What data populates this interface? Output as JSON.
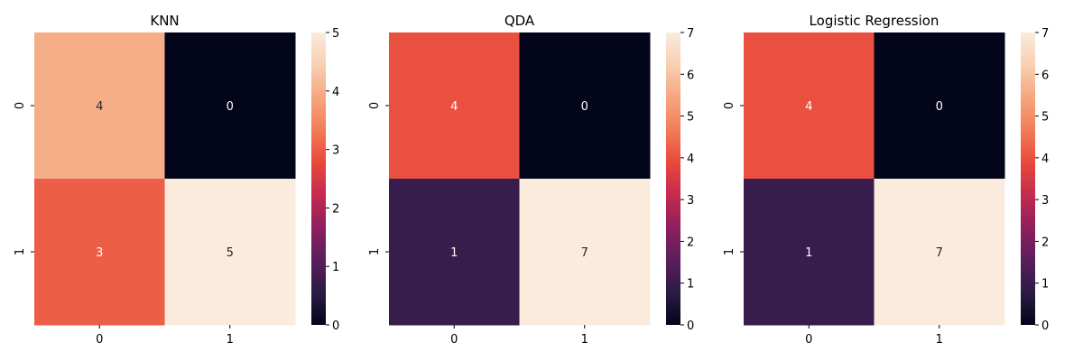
{
  "chart_data": [
    {
      "type": "heatmap",
      "title": "KNN",
      "x_categories": [
        "0",
        "1"
      ],
      "y_categories": [
        "0",
        "1"
      ],
      "values": [
        [
          4,
          0
        ],
        [
          3,
          5
        ]
      ],
      "colorbar": {
        "min": 0,
        "max": 5,
        "ticks": [
          0,
          1,
          2,
          3,
          4,
          5
        ]
      }
    },
    {
      "type": "heatmap",
      "title": "QDA",
      "x_categories": [
        "0",
        "1"
      ],
      "y_categories": [
        "0",
        "1"
      ],
      "values": [
        [
          4,
          0
        ],
        [
          1,
          7
        ]
      ],
      "colorbar": {
        "min": 0,
        "max": 7,
        "ticks": [
          0,
          1,
          2,
          3,
          4,
          5,
          6,
          7
        ]
      }
    },
    {
      "type": "heatmap",
      "title": "Logistic Regression",
      "x_categories": [
        "0",
        "1"
      ],
      "y_categories": [
        "0",
        "1"
      ],
      "values": [
        [
          4,
          0
        ],
        [
          1,
          7
        ]
      ],
      "colorbar": {
        "min": 0,
        "max": 7,
        "ticks": [
          0,
          1,
          2,
          3,
          4,
          5,
          6,
          7
        ]
      }
    }
  ],
  "colormap": {
    "name": "rocket",
    "stops": [
      "#03051a",
      "#2b1b44",
      "#5a1e5d",
      "#8f1f5d",
      "#c42b4f",
      "#e8493c",
      "#f27d57",
      "#f5a67f",
      "#f8cfb1",
      "#faebdd"
    ]
  }
}
